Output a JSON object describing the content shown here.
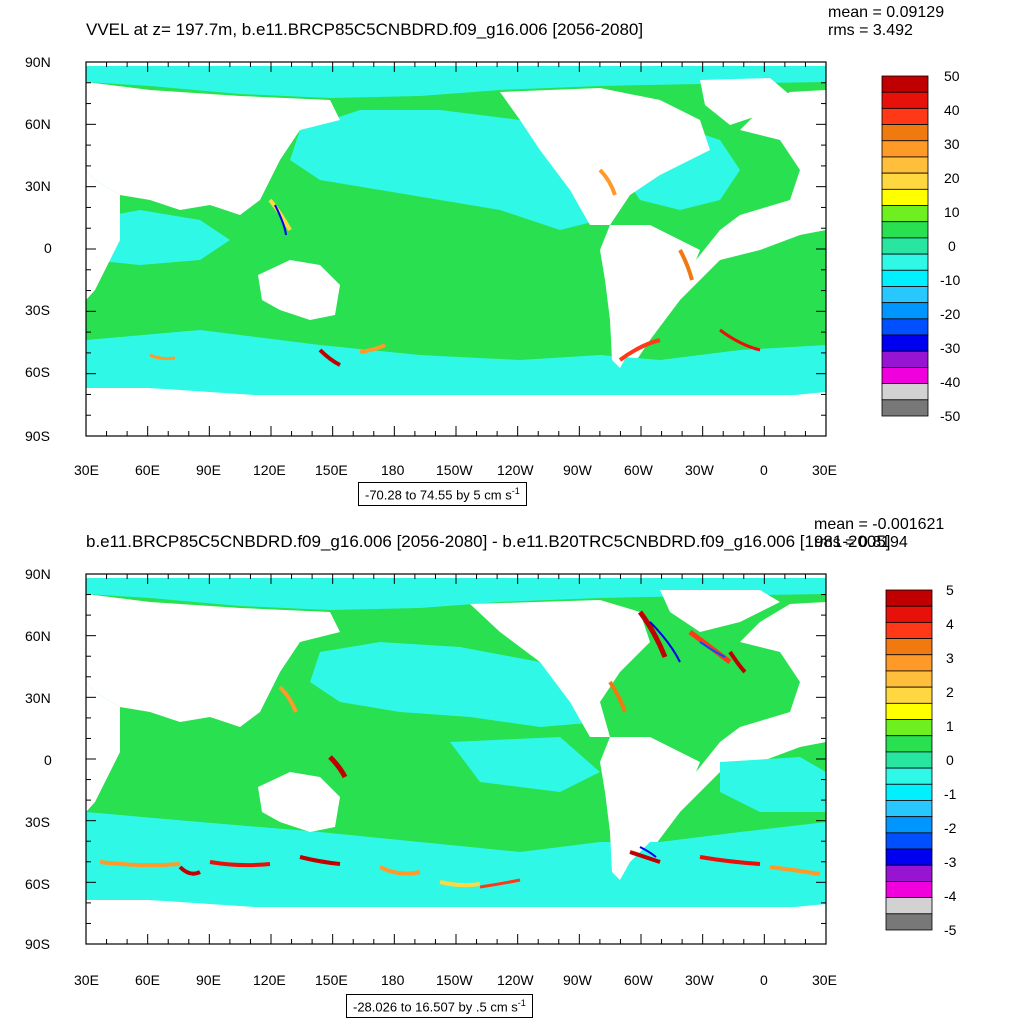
{
  "panels": [
    {
      "title": "VVEL at z= 197.7m, b.e11.BRCP85C5CNBDRD.f09_g16.006 [2056-2080]",
      "stats": {
        "mean": "mean = 0.09129",
        "rms": "rms = 3.492"
      },
      "info_text": "-70.28 to 74.55 by 5 cm s",
      "info_unit_sup": "-1",
      "colorbar_labels": [
        "50",
        "40",
        "30",
        "20",
        "10",
        "0",
        "-10",
        "-20",
        "-30",
        "-40",
        "-50"
      ],
      "colorbar_colors": [
        "#c00000",
        "#e8100a",
        "#ff3818",
        "#f07a10",
        "#ff9a28",
        "#ffbe3c",
        "#ffd740",
        "#ffff00",
        "#6ef020",
        "#28e050",
        "#28e6a0",
        "#30f8e6",
        "#00f0ff",
        "#28c8ff",
        "#0096ff",
        "#0050ff",
        "#0000f0",
        "#9614d2",
        "#f000dc",
        "#d2d2d2",
        "#787878"
      ]
    },
    {
      "title": "b.e11.BRCP85C5CNBDRD.f09_g16.006 [2056-2080] - b.e11.B20TRC5CNBDRD.f09_g16.006 [1981-2005]",
      "stats": {
        "mean": "mean = -0.001621",
        "rms": "rms = 0.8194"
      },
      "info_text": "-28.026 to 16.507 by .5 cm s",
      "info_unit_sup": "-1",
      "colorbar_labels": [
        "5",
        "4",
        "3",
        "2",
        "1",
        "0",
        "-1",
        "-2",
        "-3",
        "-4",
        "-5"
      ],
      "colorbar_colors": [
        "#c00000",
        "#e8100a",
        "#ff3818",
        "#f07a10",
        "#ff9a28",
        "#ffbe3c",
        "#ffd740",
        "#ffff00",
        "#6ef020",
        "#28e050",
        "#28e6a0",
        "#30f8e6",
        "#00f0ff",
        "#28c8ff",
        "#0096ff",
        "#0050ff",
        "#0000f0",
        "#9614d2",
        "#f000dc",
        "#d2d2d2",
        "#787878"
      ]
    }
  ],
  "axes": {
    "lat_labels": [
      "90N",
      "60N",
      "30N",
      "0",
      "30S",
      "60S",
      "90S"
    ],
    "lon_labels": [
      "30E",
      "60E",
      "90E",
      "120E",
      "150E",
      "180",
      "150W",
      "120W",
      "90W",
      "60W",
      "30W",
      "0",
      "30E"
    ]
  },
  "colors": {
    "ocean_fill": "#28e050",
    "ocean_shade": "#30f8e6",
    "land": "#ffffff"
  }
}
